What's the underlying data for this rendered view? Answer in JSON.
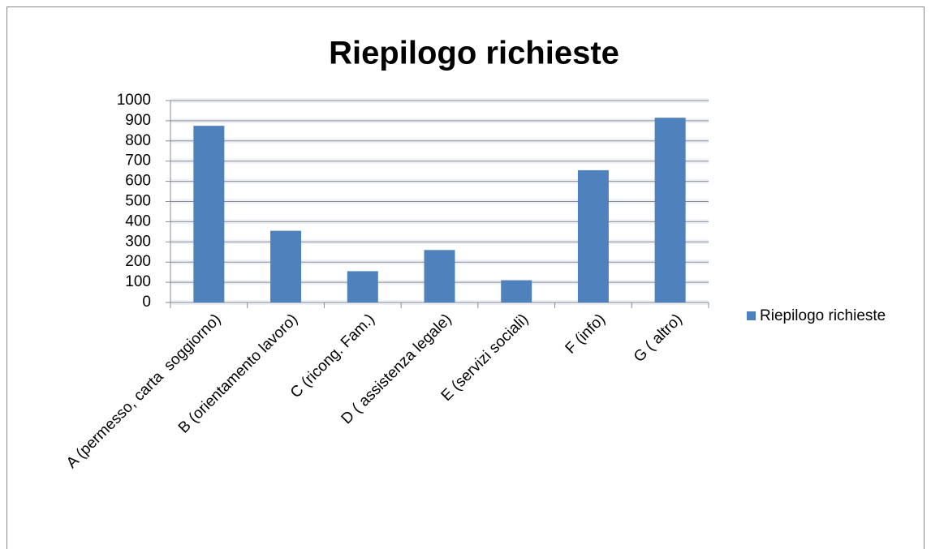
{
  "chart_data": {
    "type": "bar",
    "title": "Riepilogo richieste",
    "categories": [
      "A (permesso, carta  soggiorno)",
      "B (orientamento lavoro)",
      "C (ricong. Fam.)",
      "D ( assistenza legale)",
      "E (servizi sociali)",
      "F (info)",
      "G ( altro)"
    ],
    "series": [
      {
        "name": "Riepilogo richieste",
        "color": "#4f81bd",
        "values": [
          875,
          355,
          155,
          260,
          110,
          655,
          915
        ]
      }
    ],
    "ylim": [
      0,
      1000
    ],
    "yticks": [
      0,
      100,
      200,
      300,
      400,
      500,
      600,
      700,
      800,
      900,
      1000
    ],
    "grid": true,
    "legend": "right"
  }
}
